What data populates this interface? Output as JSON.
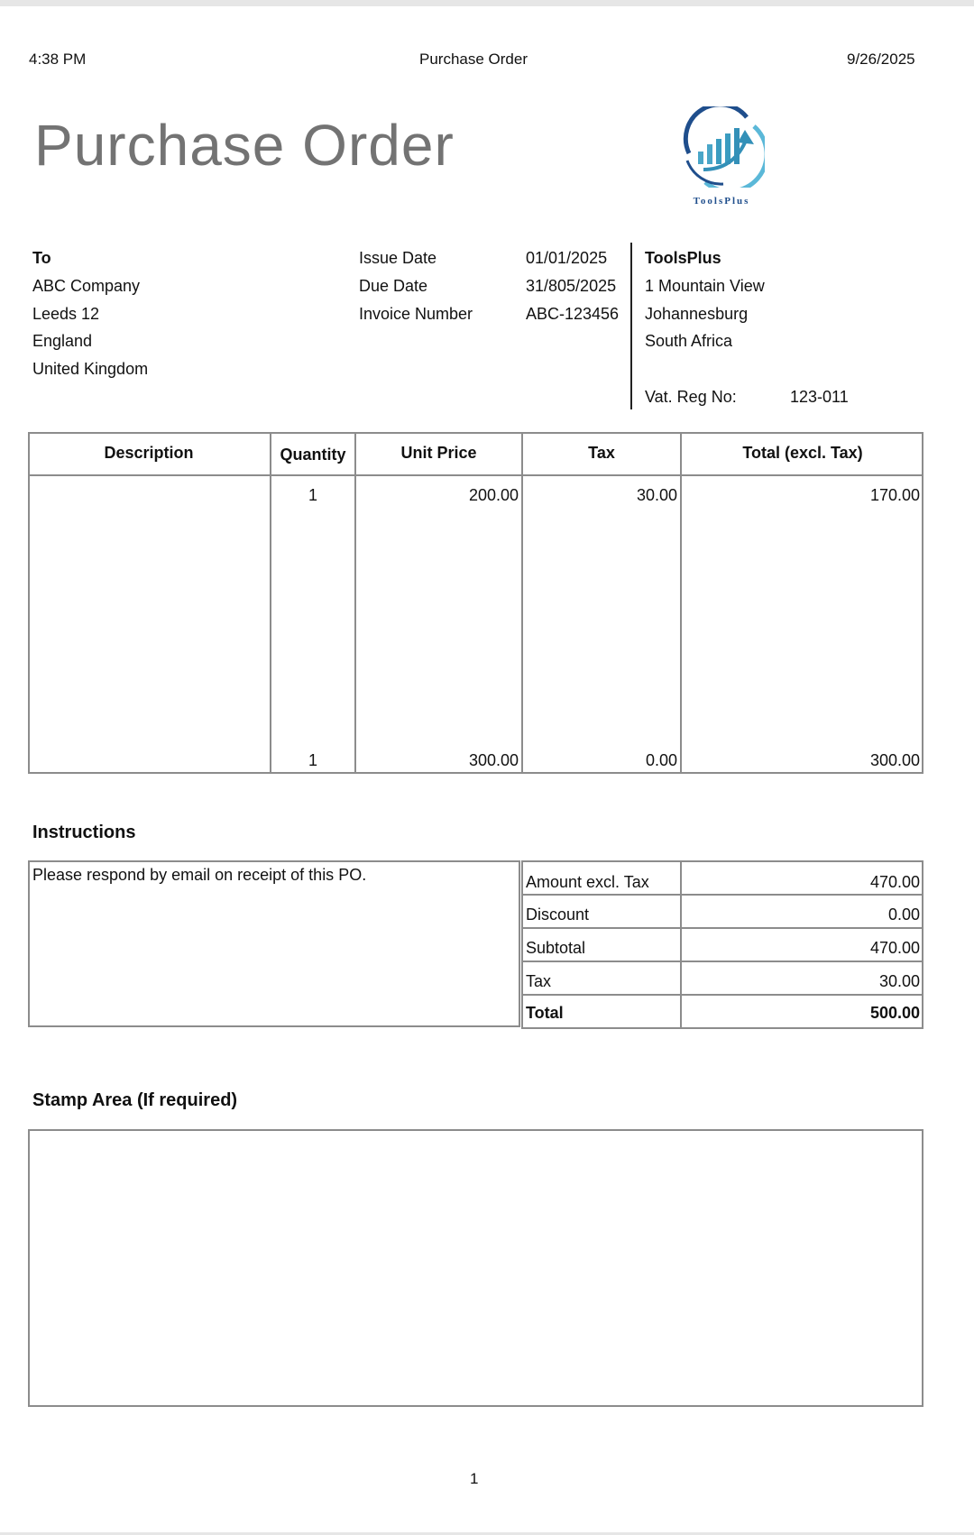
{
  "header": {
    "time": "4:38 PM",
    "title": "Purchase Order",
    "date": "9/26/2025"
  },
  "document": {
    "title": "Purchase Order"
  },
  "logo": {
    "text": "ToolsPlus",
    "colors": [
      "#1f4e8c",
      "#5bb8d8"
    ]
  },
  "to": {
    "label": "To",
    "lines": [
      "ABC Company",
      "Leeds 12",
      "England",
      "United Kingdom"
    ]
  },
  "meta": [
    {
      "label": "Issue Date",
      "value": "01/01/2025"
    },
    {
      "label": "Due Date",
      "value": "31/805/2025"
    },
    {
      "label": "Invoice Number",
      "value": "ABC-123456"
    }
  ],
  "from": {
    "name": "ToolsPlus",
    "lines": [
      "1 Mountain View",
      "Johannesburg",
      "South Africa"
    ],
    "vat_label": "Vat. Reg No:",
    "vat_value": "123-011"
  },
  "items": {
    "columns": [
      "Description",
      "Quantity",
      "Unit Price",
      "Tax",
      "Total (excl. Tax)"
    ],
    "rows": [
      {
        "description": "",
        "quantity": "1",
        "unit_price": "200.00",
        "tax": "30.00",
        "total": "170.00"
      },
      {
        "description": "",
        "quantity": "1",
        "unit_price": "300.00",
        "tax": "0.00",
        "total": "300.00"
      }
    ]
  },
  "instructions": {
    "heading": "Instructions",
    "text": "Please respond by email on receipt of this PO."
  },
  "totals": [
    {
      "label": "Amount excl. Tax",
      "value": "470.00"
    },
    {
      "label": "Discount",
      "value": "0.00"
    },
    {
      "label": "Subtotal",
      "value": "470.00"
    },
    {
      "label": "Tax",
      "value": "30.00"
    },
    {
      "label": "Total",
      "value": "500.00"
    }
  ],
  "stamp": {
    "heading": "Stamp Area (If required)"
  },
  "footer": {
    "page": "1"
  }
}
